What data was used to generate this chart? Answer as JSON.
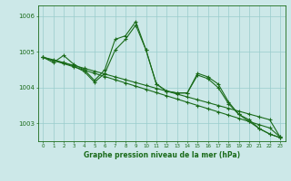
{
  "xlabel": "Graphe pression niveau de la mer (hPa)",
  "background_color": "#cce8e8",
  "grid_color": "#99cccc",
  "line_color": "#1a6b1a",
  "xlim": [
    -0.5,
    23.5
  ],
  "ylim": [
    1002.5,
    1006.3
  ],
  "yticks": [
    1003,
    1004,
    1005,
    1006
  ],
  "xticks": [
    0,
    1,
    2,
    3,
    4,
    5,
    6,
    7,
    8,
    9,
    10,
    11,
    12,
    13,
    14,
    15,
    16,
    17,
    18,
    19,
    20,
    21,
    22,
    23
  ],
  "line1": [
    1004.85,
    1004.7,
    1004.9,
    1004.65,
    1004.5,
    1004.2,
    1004.5,
    1005.35,
    1005.45,
    1005.85,
    1005.05,
    1004.1,
    1003.9,
    1003.85,
    1003.85,
    1004.4,
    1004.3,
    1004.1,
    1003.6,
    1003.25,
    1003.1,
    1002.85,
    1002.7,
    1002.6
  ],
  "line2": [
    1004.85,
    1004.75,
    1004.7,
    1004.6,
    1004.45,
    1004.15,
    1004.4,
    1005.05,
    1005.35,
    1005.75,
    1005.05,
    1004.1,
    1003.9,
    1003.85,
    1003.85,
    1004.35,
    1004.25,
    1004.0,
    1003.55,
    1003.25,
    1003.05,
    1002.85,
    1002.7,
    1002.6
  ],
  "line3": [
    1004.85,
    1004.78,
    1004.7,
    1004.62,
    1004.54,
    1004.46,
    1004.38,
    1004.3,
    1004.22,
    1004.14,
    1004.06,
    1003.98,
    1003.9,
    1003.82,
    1003.74,
    1003.66,
    1003.58,
    1003.5,
    1003.42,
    1003.34,
    1003.26,
    1003.18,
    1003.1,
    1002.62
  ],
  "line4": [
    1004.85,
    1004.76,
    1004.67,
    1004.58,
    1004.49,
    1004.4,
    1004.31,
    1004.22,
    1004.13,
    1004.04,
    1003.95,
    1003.86,
    1003.77,
    1003.68,
    1003.59,
    1003.5,
    1003.41,
    1003.32,
    1003.23,
    1003.14,
    1003.05,
    1002.96,
    1002.87,
    1002.62
  ]
}
